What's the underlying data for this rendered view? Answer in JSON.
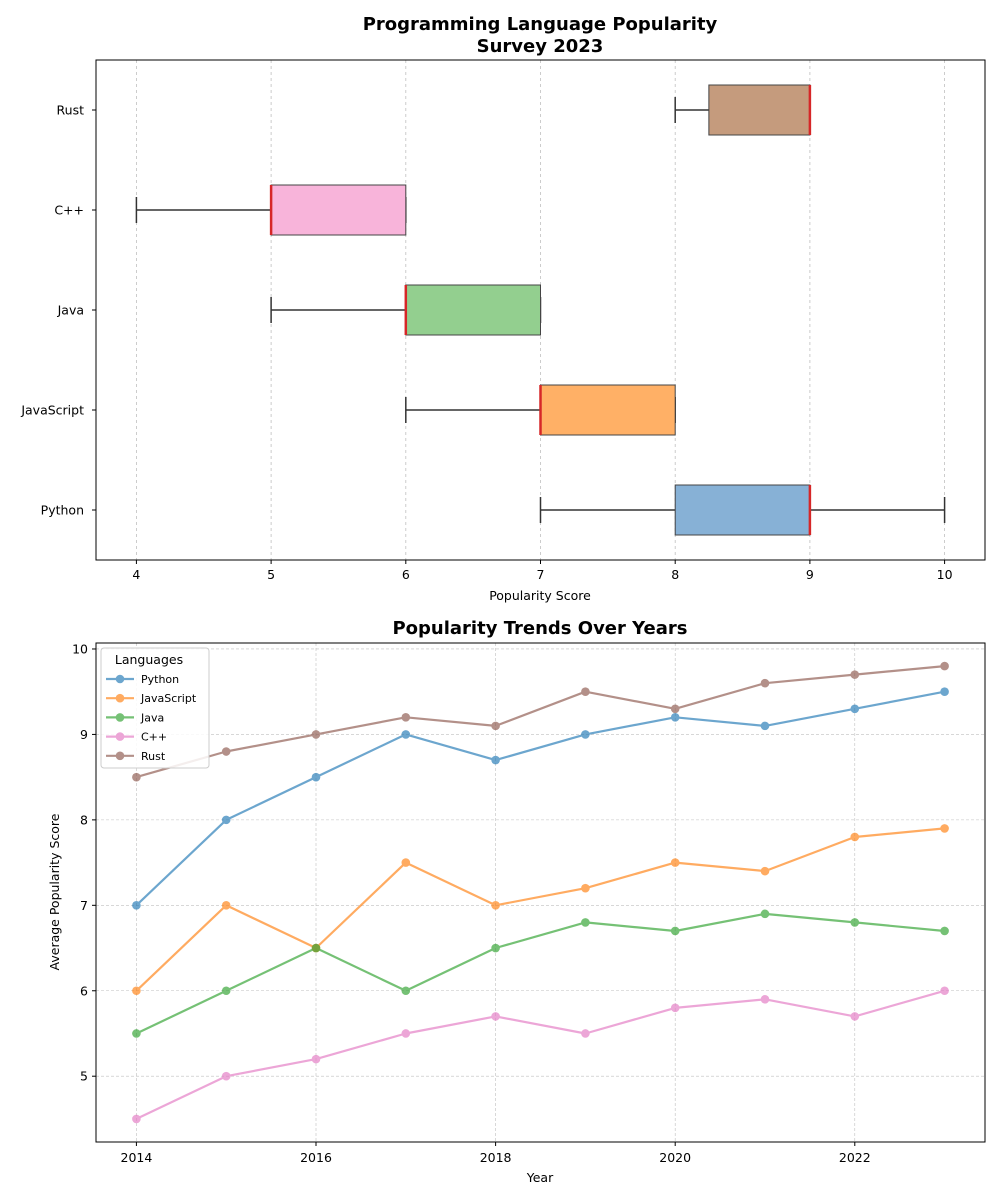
{
  "colors": {
    "Python": "#1f77b4",
    "JavaScript": "#ff7f0e",
    "Java": "#2ca02c",
    "C++": "#e377c2",
    "Rust": "#8c564b",
    "box_Python": "#87b1d6",
    "box_JavaScript": "#ffb066",
    "box_Java": "#93cf8f",
    "box_C++": "#f8b4da",
    "box_Rust": "#c59b7d",
    "median": "#d62728"
  },
  "chart_data": [
    {
      "type": "box",
      "title": "Programming Language Popularity\nSurvey 2023",
      "xlabel": "Popularity Score",
      "ylabel": "",
      "orientation": "horizontal",
      "xlim": [
        3.7,
        10.3
      ],
      "xticks": [
        4,
        5,
        6,
        7,
        8,
        9,
        10
      ],
      "grid": "x",
      "categories": [
        "Python",
        "JavaScript",
        "Java",
        "C++",
        "Rust"
      ],
      "boxes": [
        {
          "name": "Python",
          "whisker_low": 7,
          "q1": 8,
          "median": 9,
          "q3": 9,
          "whisker_high": 10
        },
        {
          "name": "JavaScript",
          "whisker_low": 6,
          "q1": 7,
          "median": 7,
          "q3": 8,
          "whisker_high": 8
        },
        {
          "name": "Java",
          "whisker_low": 5,
          "q1": 6,
          "median": 6,
          "q3": 7,
          "whisker_high": 7
        },
        {
          "name": "C++",
          "whisker_low": 4,
          "q1": 5,
          "median": 5,
          "q3": 6,
          "whisker_high": 6
        },
        {
          "name": "Rust",
          "whisker_low": 8,
          "q1": 8.25,
          "median": 9,
          "q3": 9,
          "whisker_high": 9
        }
      ]
    },
    {
      "type": "line",
      "title": "Popularity Trends Over Years",
      "xlabel": "Year",
      "ylabel": "Average Popularity Score",
      "xlim": [
        2013.55,
        2023.45
      ],
      "ylim": [
        4.23,
        10.07
      ],
      "xticks": [
        2014,
        2016,
        2018,
        2020,
        2022
      ],
      "yticks": [
        5,
        6,
        7,
        8,
        9,
        10
      ],
      "grid": "both",
      "legend": {
        "title": "Languages",
        "placement": "top-left"
      },
      "x": [
        2014,
        2015,
        2016,
        2017,
        2018,
        2019,
        2020,
        2021,
        2022,
        2023
      ],
      "series": [
        {
          "name": "Python",
          "values": [
            7.0,
            8.0,
            8.5,
            9.0,
            8.7,
            9.0,
            9.2,
            9.1,
            9.3,
            9.5
          ]
        },
        {
          "name": "JavaScript",
          "values": [
            6.0,
            7.0,
            6.5,
            7.5,
            7.0,
            7.2,
            7.5,
            7.4,
            7.8,
            7.9
          ]
        },
        {
          "name": "Java",
          "values": [
            5.5,
            6.0,
            6.5,
            6.0,
            6.5,
            6.8,
            6.7,
            6.9,
            6.8,
            6.7
          ]
        },
        {
          "name": "C++",
          "values": [
            4.5,
            5.0,
            5.2,
            5.5,
            5.7,
            5.5,
            5.8,
            5.9,
            5.7,
            6.0
          ]
        },
        {
          "name": "Rust",
          "values": [
            8.5,
            8.8,
            9.0,
            9.2,
            9.1,
            9.5,
            9.3,
            9.6,
            9.7,
            9.8
          ]
        }
      ]
    }
  ]
}
